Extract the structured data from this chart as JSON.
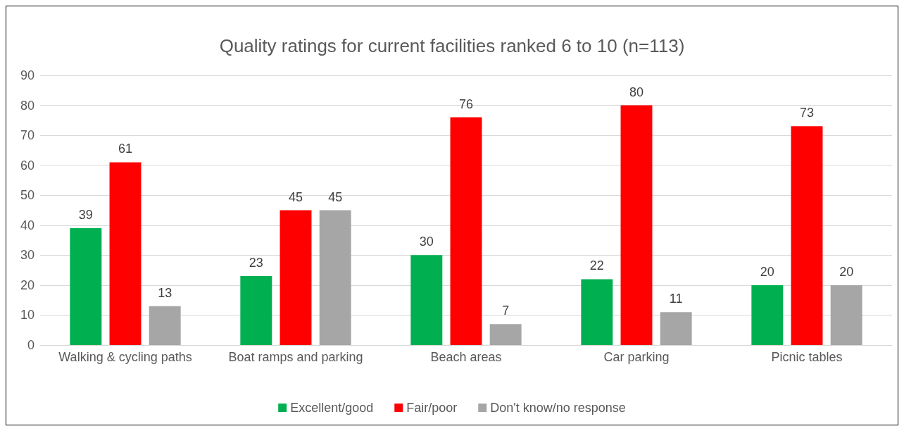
{
  "chart_data": {
    "type": "bar",
    "title": "Quality ratings for current facilities ranked 6 to 10 (n=113)",
    "categories": [
      "Walking & cycling paths",
      "Boat ramps and parking",
      "Beach areas",
      "Car parking",
      "Picnic tables"
    ],
    "series": [
      {
        "name": "Excellent/good",
        "color": "#00b050",
        "values": [
          39,
          23,
          30,
          22,
          20
        ]
      },
      {
        "name": "Fair/poor",
        "color": "#ff0000",
        "values": [
          61,
          45,
          76,
          80,
          73
        ]
      },
      {
        "name": "Don't know/no response",
        "color": "#a6a6a6",
        "values": [
          13,
          45,
          7,
          11,
          20
        ]
      }
    ],
    "ylim": [
      0,
      90
    ],
    "yticks": [
      0,
      10,
      20,
      30,
      40,
      50,
      60,
      70,
      80,
      90
    ],
    "grid": "y",
    "legend": "bottom",
    "data_labels": true
  }
}
